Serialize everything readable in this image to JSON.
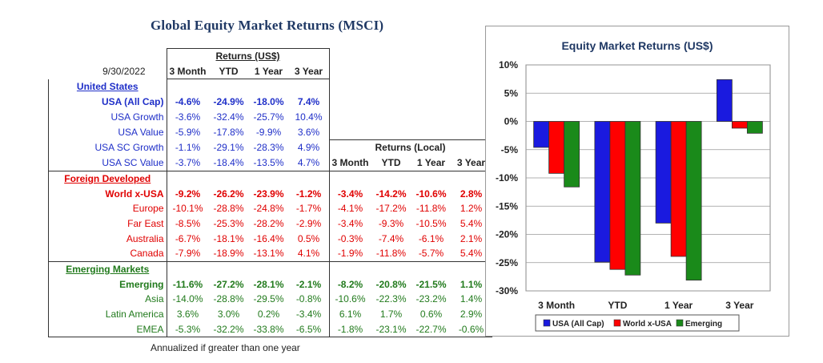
{
  "title": "Global Equity Market Returns (MSCI)",
  "date": "9/30/2022",
  "group_usd": "Returns (US$)",
  "group_local": "Returns (Local)",
  "periods": [
    "3 Month",
    "YTD",
    "1 Year",
    "3 Year"
  ],
  "note": "Annualized if greater than one year",
  "colors": {
    "usa": "#1a1adf",
    "foreign": "#ff0000",
    "emerging": "#1a8a1a",
    "header_blue": "#1f3864"
  },
  "sections": [
    {
      "header": "United States",
      "color": "blue",
      "rows": [
        {
          "name": "USA (All Cap)",
          "bold": true,
          "usd": [
            "-4.6%",
            "-24.9%",
            "-18.0%",
            "7.4%"
          ],
          "local": []
        },
        {
          "name": "USA Growth",
          "bold": false,
          "usd": [
            "-3.6%",
            "-32.4%",
            "-25.7%",
            "10.4%"
          ],
          "local": []
        },
        {
          "name": "USA Value",
          "bold": false,
          "usd": [
            "-5.9%",
            "-17.8%",
            "-9.9%",
            "3.6%"
          ],
          "local": []
        },
        {
          "name": "USA SC Growth",
          "bold": false,
          "usd": [
            "-1.1%",
            "-29.1%",
            "-28.3%",
            "4.9%"
          ],
          "local": []
        },
        {
          "name": "USA SC Value",
          "bold": false,
          "usd": [
            "-3.7%",
            "-18.4%",
            "-13.5%",
            "4.7%"
          ],
          "local": []
        }
      ]
    },
    {
      "header": "Foreign Developed",
      "color": "red",
      "rows": [
        {
          "name": "World x-USA",
          "bold": true,
          "usd": [
            "-9.2%",
            "-26.2%",
            "-23.9%",
            "-1.2%"
          ],
          "local": [
            "-3.4%",
            "-14.2%",
            "-10.6%",
            "2.8%"
          ]
        },
        {
          "name": "Europe",
          "bold": false,
          "usd": [
            "-10.1%",
            "-28.8%",
            "-24.8%",
            "-1.7%"
          ],
          "local": [
            "-4.1%",
            "-17.2%",
            "-11.8%",
            "1.2%"
          ]
        },
        {
          "name": "Far East",
          "bold": false,
          "usd": [
            "-8.5%",
            "-25.3%",
            "-28.2%",
            "-2.9%"
          ],
          "local": [
            "-3.4%",
            "-9.3%",
            "-10.5%",
            "5.4%"
          ]
        },
        {
          "name": "Australia",
          "bold": false,
          "usd": [
            "-6.7%",
            "-18.1%",
            "-16.4%",
            "0.5%"
          ],
          "local": [
            "-0.3%",
            "-7.4%",
            "-6.1%",
            "2.1%"
          ]
        },
        {
          "name": "Canada",
          "bold": false,
          "usd": [
            "-7.9%",
            "-18.9%",
            "-13.1%",
            "4.1%"
          ],
          "local": [
            "-1.9%",
            "-11.8%",
            "-5.7%",
            "5.4%"
          ]
        }
      ]
    },
    {
      "header": "Emerging Markets",
      "color": "green",
      "rows": [
        {
          "name": "Emerging",
          "bold": true,
          "usd": [
            "-11.6%",
            "-27.2%",
            "-28.1%",
            "-2.1%"
          ],
          "local": [
            "-8.2%",
            "-20.8%",
            "-21.5%",
            "1.1%"
          ]
        },
        {
          "name": "Asia",
          "bold": false,
          "usd": [
            "-14.0%",
            "-28.8%",
            "-29.5%",
            "-0.8%"
          ],
          "local": [
            "-10.6%",
            "-22.3%",
            "-23.2%",
            "1.4%"
          ]
        },
        {
          "name": "Latin America",
          "bold": false,
          "usd": [
            "3.6%",
            "3.0%",
            "0.2%",
            "-3.4%"
          ],
          "local": [
            "6.1%",
            "1.7%",
            "0.6%",
            "2.9%"
          ]
        },
        {
          "name": "EMEA",
          "bold": false,
          "usd": [
            "-5.3%",
            "-32.2%",
            "-33.8%",
            "-6.5%"
          ],
          "local": [
            "-1.8%",
            "-23.1%",
            "-22.7%",
            "-0.6%"
          ]
        }
      ]
    }
  ],
  "chart_data": {
    "type": "bar",
    "title": "Equity Market Returns (US$)",
    "categories": [
      "3 Month",
      "YTD",
      "1 Year",
      "3 Year"
    ],
    "series": [
      {
        "name": "USA (All Cap)",
        "color": "#1a1adf",
        "values": [
          -4.6,
          -24.9,
          -18.0,
          7.4
        ]
      },
      {
        "name": "World x-USA",
        "color": "#ff0000",
        "values": [
          -9.2,
          -26.2,
          -23.9,
          -1.2
        ]
      },
      {
        "name": "Emerging",
        "color": "#1a8a1a",
        "values": [
          -11.6,
          -27.2,
          -28.1,
          -2.1
        ]
      }
    ],
    "ylim": [
      -30,
      10
    ],
    "yticks": [
      10,
      5,
      0,
      -5,
      -10,
      -15,
      -20,
      -25,
      -30
    ],
    "ytick_labels": [
      "10%",
      "5%",
      "0%",
      "-5%",
      "-10%",
      "-15%",
      "-20%",
      "-25%",
      "-30%"
    ],
    "grid": true,
    "legend": "bottom"
  }
}
